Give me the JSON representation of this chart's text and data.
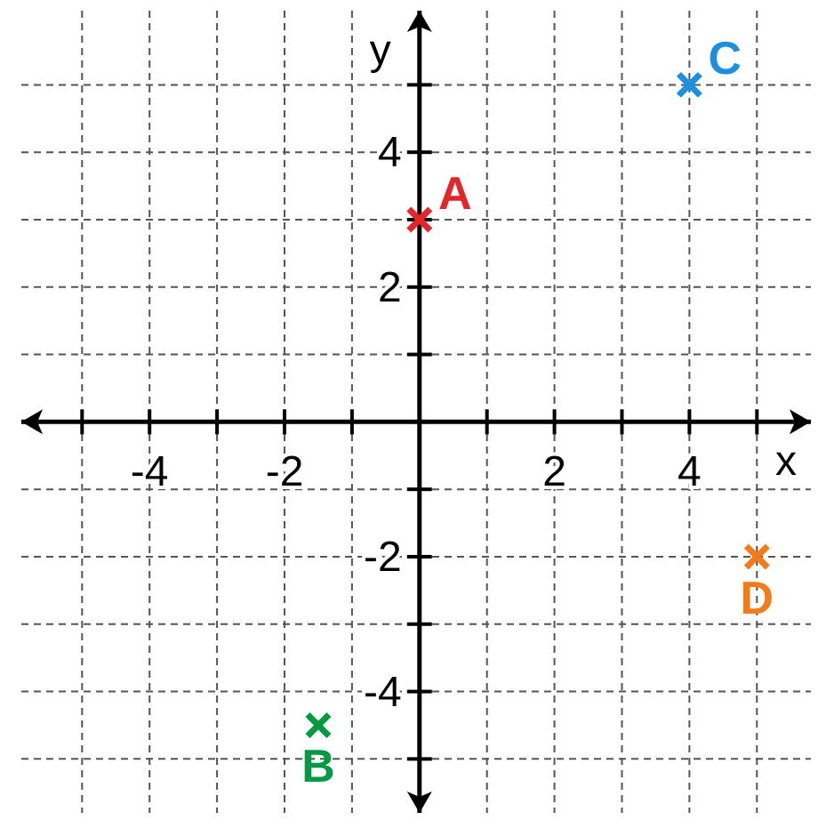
{
  "chart_data": {
    "type": "scatter",
    "xlabel": "x",
    "ylabel": "y",
    "marker": "cross",
    "grid": true,
    "xlim": [
      -5.9,
      5.8
    ],
    "ylim": [
      -5.8,
      6.1
    ],
    "xticks": [
      {
        "value": -5,
        "label": null
      },
      -4,
      {
        "value": -3,
        "label": null
      },
      -2,
      {
        "value": -1,
        "label": null
      },
      {
        "value": 1,
        "label": null
      },
      2,
      {
        "value": 3,
        "label": null
      },
      4,
      {
        "value": 5,
        "label": null
      }
    ],
    "yticks": [
      {
        "value": -5,
        "label": null
      },
      -4,
      {
        "value": -3,
        "label": null
      },
      -2,
      {
        "value": -1,
        "label": null
      },
      {
        "value": 1,
        "label": null
      },
      2,
      {
        "value": 3,
        "label": null
      },
      4,
      {
        "value": 5,
        "label": null
      }
    ],
    "series": [
      {
        "name": "A",
        "color": "#e3262a",
        "x": [
          0
        ],
        "values": [
          3
        ]
      },
      {
        "name": "B",
        "color": "#009a44",
        "x": [
          -1.5
        ],
        "values": [
          -4.5
        ]
      },
      {
        "name": "C",
        "color": "#1b8fe0",
        "x": [
          4
        ],
        "values": [
          5
        ]
      },
      {
        "name": "D",
        "color": "#f07d1a",
        "x": [
          5
        ],
        "values": [
          -2
        ]
      }
    ]
  }
}
